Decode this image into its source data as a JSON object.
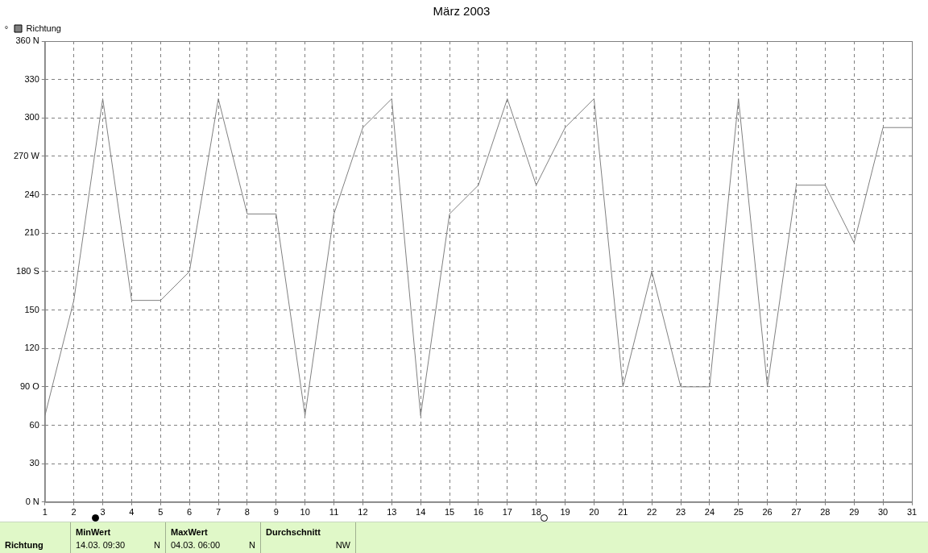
{
  "chart_data": {
    "type": "line",
    "title": "März 2003",
    "ylabel": "°",
    "x": [
      1,
      2,
      3,
      4,
      5,
      6,
      7,
      8,
      9,
      10,
      11,
      12,
      13,
      14,
      15,
      16,
      17,
      18,
      19,
      20,
      21,
      22,
      23,
      24,
      25,
      26,
      27,
      28,
      29,
      30,
      31
    ],
    "series": [
      {
        "name": "Richtung",
        "color": "#808080",
        "values": [
          67.5,
          157.5,
          315,
          157.5,
          157.5,
          180,
          315,
          225,
          225,
          67.5,
          225,
          292.5,
          315,
          67.5,
          225,
          247.5,
          315,
          247.5,
          292.5,
          315,
          90,
          180,
          90,
          90,
          315,
          90,
          247.5,
          247.5,
          202.5,
          292.5,
          292.5
        ]
      }
    ],
    "xlim": [
      1,
      31
    ],
    "xticks": [
      1,
      2,
      3,
      4,
      5,
      6,
      7,
      8,
      9,
      10,
      11,
      12,
      13,
      14,
      15,
      16,
      17,
      18,
      19,
      20,
      21,
      22,
      23,
      24,
      25,
      26,
      27,
      28,
      29,
      30,
      31
    ],
    "ylim": [
      0,
      360
    ],
    "yticks": [
      {
        "value": 0,
        "label": "0 N"
      },
      30,
      60,
      {
        "value": 90,
        "label": "90 O"
      },
      120,
      150,
      {
        "value": 180,
        "label": "180 S"
      },
      210,
      240,
      {
        "value": 270,
        "label": "270 W"
      },
      300,
      330,
      {
        "value": 360,
        "label": "360 N"
      }
    ],
    "grid": true,
    "legend": "top left",
    "marker": "none",
    "line_style": "solid",
    "annotations": [
      "Richtung",
      "MinWert",
      "14.03.  09:30",
      "N",
      "MaxWert",
      "04.03.  06:00",
      "N",
      "Durchschnitt",
      "NW"
    ]
  }
}
